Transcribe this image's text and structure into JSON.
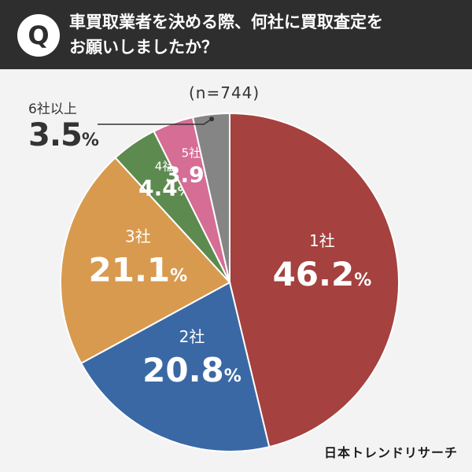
{
  "header": {
    "badge": "Q",
    "question_line1": "車買取業者を決める際、何社に買取査定を",
    "question_line2": "お願いしましたか？"
  },
  "chart_data": {
    "type": "pie",
    "sample_label": "(n=744)",
    "unit": "%",
    "slices": [
      {
        "label": "1社",
        "value": 46.2,
        "color": "#a5413e",
        "label_placement": "inside"
      },
      {
        "label": "2社",
        "value": 20.8,
        "color": "#3a68a4",
        "label_placement": "inside"
      },
      {
        "label": "3社",
        "value": 21.1,
        "color": "#d89a4f",
        "label_placement": "inside"
      },
      {
        "label": "4社",
        "value": 4.4,
        "color": "#5d8a4f",
        "label_placement": "inside"
      },
      {
        "label": "5社",
        "value": 3.9,
        "color": "#d56d95",
        "label_placement": "inside"
      },
      {
        "label": "6社以上",
        "value": 3.5,
        "color": "#858585",
        "label_placement": "outside-leader"
      }
    ]
  },
  "outside_label": {
    "label": "6社以上",
    "value": "3.5",
    "unit": "%"
  },
  "brand": "日本トレンドリサーチ"
}
